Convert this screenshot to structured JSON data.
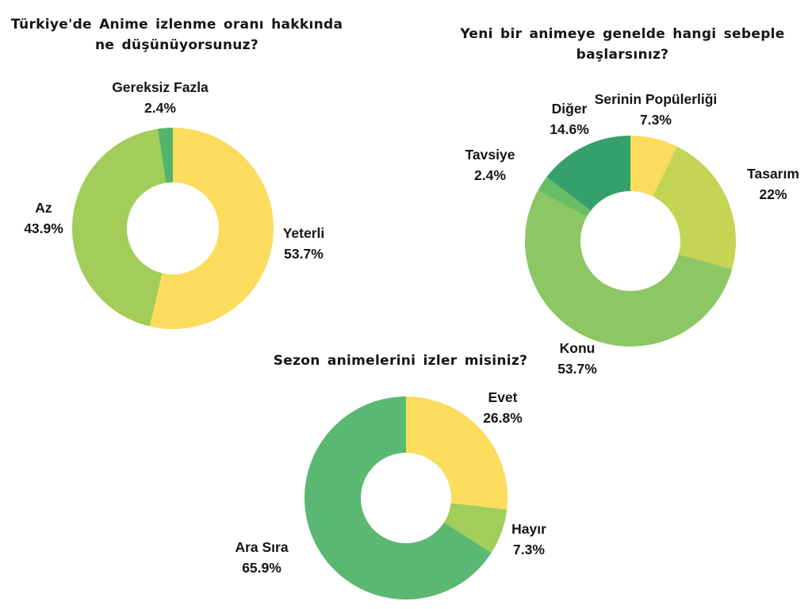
{
  "page": {
    "background_color": "#ffffff",
    "text_color": "#151515"
  },
  "chart_data": [
    {
      "type": "pie",
      "subtype": "donut",
      "title": "Türkiye'de Anime izlenme oranı hakkında ne düşünüyorsunuz?",
      "legend_position": "none",
      "label_style": "outside-category-and-percent",
      "start_angle_deg": 0,
      "direction": "clockwise",
      "slices": [
        {
          "label": "Yeterli",
          "value": 53.7,
          "value_label": "53.7%",
          "color": "#FCDC5C"
        },
        {
          "label": "Az",
          "value": 43.9,
          "value_label": "43.9%",
          "color": "#A3CD5B"
        },
        {
          "label": "Gereksiz Fazla",
          "value": 2.4,
          "value_label": "2.4%",
          "color": "#55B46C"
        }
      ]
    },
    {
      "type": "pie",
      "subtype": "donut",
      "title": "Yeni bir animeye genelde hangi sebeple başlarsınız?",
      "legend_position": "none",
      "label_style": "outside-category-and-percent",
      "start_angle_deg": 0,
      "direction": "clockwise",
      "slices": [
        {
          "label": "Serinin Popülerliği",
          "value": 7.3,
          "value_label": "7.3%",
          "color": "#FCDC5C"
        },
        {
          "label": "Tasarım",
          "value": 22,
          "value_label": "22%",
          "color": "#C4D455"
        },
        {
          "label": "Konu",
          "value": 53.7,
          "value_label": "53.7%",
          "color": "#8CC763"
        },
        {
          "label": "Tavsiye",
          "value": 2.4,
          "value_label": "2.4%",
          "color": "#69BD63"
        },
        {
          "label": "Diğer",
          "value": 14.6,
          "value_label": "14.6%",
          "color": "#35A06B"
        }
      ]
    },
    {
      "type": "pie",
      "subtype": "donut",
      "title": "Sezon animelerini izler misiniz?",
      "legend_position": "none",
      "label_style": "outside-category-and-percent",
      "start_angle_deg": 0,
      "direction": "clockwise",
      "slices": [
        {
          "label": "Evet",
          "value": 26.8,
          "value_label": "26.8%",
          "color": "#FCDC5C"
        },
        {
          "label": "Hayır",
          "value": 7.3,
          "value_label": "7.3%",
          "color": "#A3CD5B"
        },
        {
          "label": "Ara Sıra",
          "value": 65.9,
          "value_label": "65.9%",
          "color": "#5BB872"
        }
      ]
    }
  ]
}
